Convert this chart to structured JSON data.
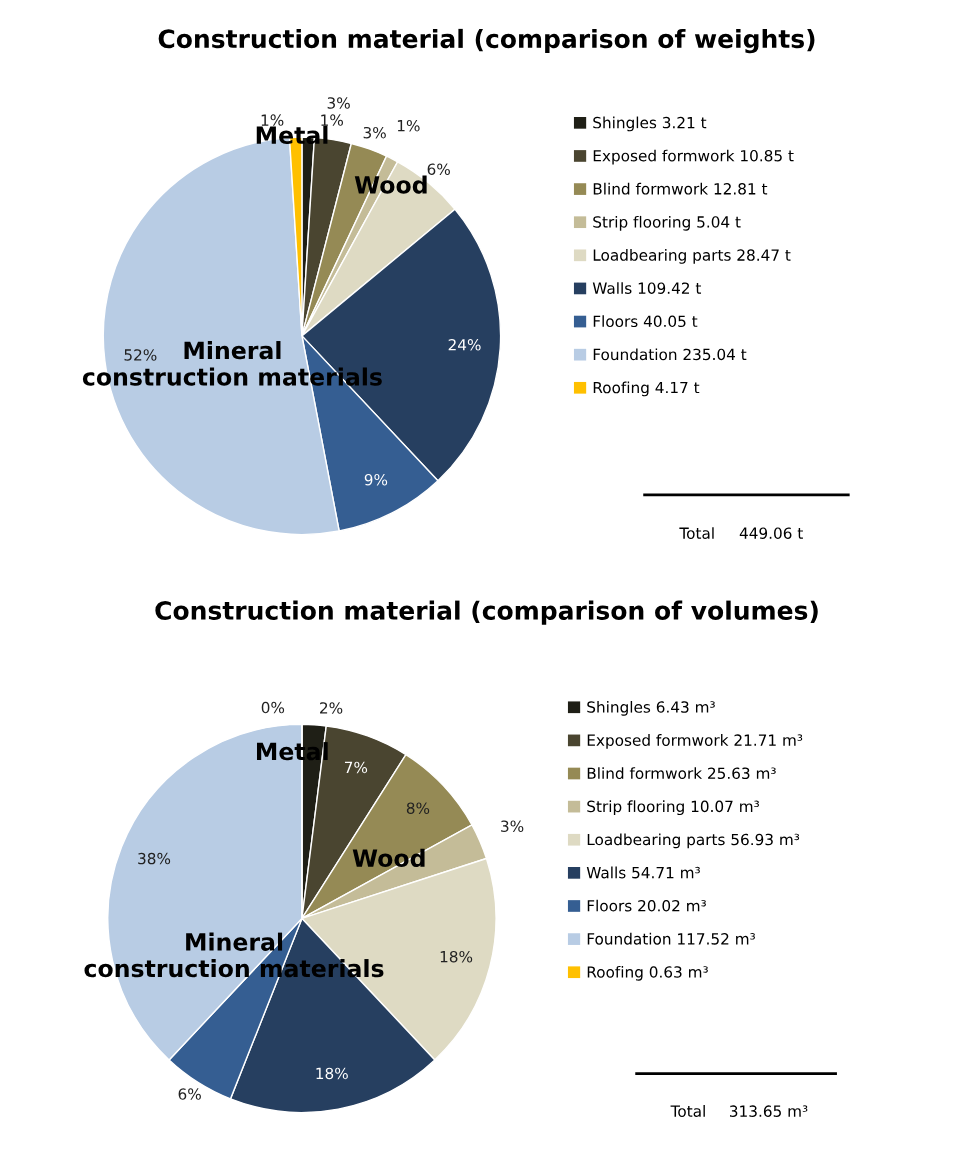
{
  "chart_data": [
    {
      "type": "pie",
      "title": "Construction material (comparison of weights)",
      "categories": [
        "Shingles 3.21 t",
        "Exposed formwork 10.85 t",
        "Blind formwork 12.81 t",
        "Strip flooring 5.04 t",
        "Loadbearing parts 28.47 t",
        "Walls 109.42 t",
        "Floors 40.05 t",
        "Foundation 235.04 t",
        "Roofing 4.17 t"
      ],
      "values": [
        1,
        3,
        3,
        1,
        6,
        24,
        9,
        52,
        1
      ],
      "value_labels": [
        "1%",
        "3%",
        "3%",
        "1%",
        "6%",
        "24%",
        "9%",
        "52%",
        "1%"
      ],
      "colors": [
        "#1f1f16",
        "#4a4530",
        "#958a55",
        "#c4bc98",
        "#dedac3",
        "#263f60",
        "#355e92",
        "#b8cce4",
        "#ffc000"
      ],
      "legend": "right",
      "annotations": [
        "Metal",
        "Wood",
        "Mineral\nconstruction materials",
        "Total",
        "449.06 t"
      ]
    },
    {
      "type": "pie",
      "title": "Construction material (comparison of volumes)",
      "categories": [
        "Shingles 6.43 m³",
        "Exposed formwork 21.71 m³",
        "Blind formwork 25.63 m³",
        "Strip flooring 10.07 m³",
        "Loadbearing parts 56.93 m³",
        "Walls 54.71 m³",
        "Floors 20.02 m³",
        "Foundation 117.52 m³",
        "Roofing 0.63 m³"
      ],
      "values": [
        2,
        7,
        8,
        3,
        18,
        18,
        6,
        38,
        0
      ],
      "value_labels": [
        "2%",
        "7%",
        "8%",
        "3%",
        "18%",
        "18%",
        "6%",
        "38%",
        "0%"
      ],
      "colors": [
        "#1f1f16",
        "#4a4530",
        "#958a55",
        "#c4bc98",
        "#dedac3",
        "#263f60",
        "#355e92",
        "#b8cce4",
        "#ffc000"
      ],
      "legend": "right",
      "annotations": [
        "Metal",
        "Wood",
        "Mineral\nconstruction materials",
        "Total",
        "313.65 m³"
      ]
    }
  ]
}
